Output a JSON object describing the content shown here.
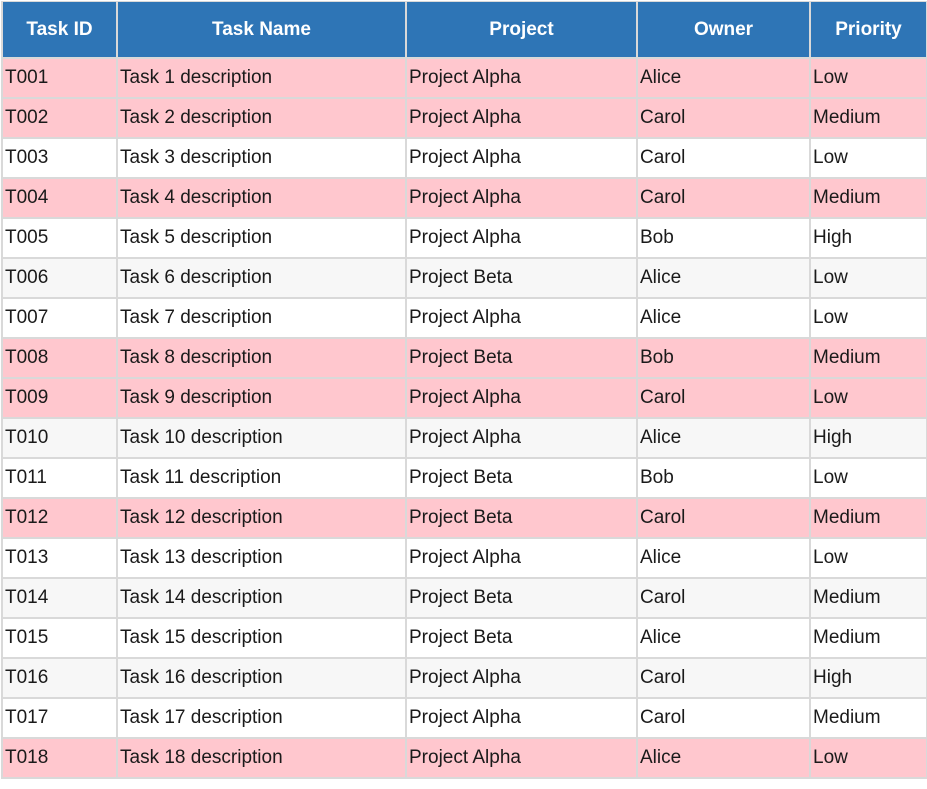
{
  "colors": {
    "header_bg": "#2e75b6",
    "header_text": "#ffffff",
    "highlight_row": "#ffc7ce",
    "plain_row": "#ffffff",
    "alt_row": "#f7f7f7",
    "grid": "#d9d9d9"
  },
  "table": {
    "headers": [
      "Task ID",
      "Task Name",
      "Project",
      "Owner",
      "Priority"
    ],
    "rows": [
      {
        "style": "highlight",
        "cells": [
          "T001",
          "Task 1 description",
          "Project Alpha",
          "Alice",
          "Low"
        ]
      },
      {
        "style": "highlight",
        "cells": [
          "T002",
          "Task 2 description",
          "Project Alpha",
          "Carol",
          "Medium"
        ]
      },
      {
        "style": "plain",
        "cells": [
          "T003",
          "Task 3 description",
          "Project Alpha",
          "Carol",
          "Low"
        ]
      },
      {
        "style": "highlight",
        "cells": [
          "T004",
          "Task 4 description",
          "Project Alpha",
          "Carol",
          "Medium"
        ]
      },
      {
        "style": "plain",
        "cells": [
          "T005",
          "Task 5 description",
          "Project Alpha",
          "Bob",
          "High"
        ]
      },
      {
        "style": "alt",
        "cells": [
          "T006",
          "Task 6 description",
          "Project Beta",
          "Alice",
          "Low"
        ]
      },
      {
        "style": "plain",
        "cells": [
          "T007",
          "Task 7 description",
          "Project Alpha",
          "Alice",
          "Low"
        ]
      },
      {
        "style": "highlight",
        "cells": [
          "T008",
          "Task 8 description",
          "Project Beta",
          "Bob",
          "Medium"
        ]
      },
      {
        "style": "highlight",
        "cells": [
          "T009",
          "Task 9 description",
          "Project Alpha",
          "Carol",
          "Low"
        ]
      },
      {
        "style": "alt",
        "cells": [
          "T010",
          "Task 10 description",
          "Project Alpha",
          "Alice",
          "High"
        ]
      },
      {
        "style": "plain",
        "cells": [
          "T011",
          "Task 11 description",
          "Project Beta",
          "Bob",
          "Low"
        ]
      },
      {
        "style": "highlight",
        "cells": [
          "T012",
          "Task 12 description",
          "Project Beta",
          "Carol",
          "Medium"
        ]
      },
      {
        "style": "plain",
        "cells": [
          "T013",
          "Task 13 description",
          "Project Alpha",
          "Alice",
          "Low"
        ]
      },
      {
        "style": "alt",
        "cells": [
          "T014",
          "Task 14 description",
          "Project Beta",
          "Carol",
          "Medium"
        ]
      },
      {
        "style": "plain",
        "cells": [
          "T015",
          "Task 15 description",
          "Project Beta",
          "Alice",
          "Medium"
        ]
      },
      {
        "style": "alt",
        "cells": [
          "T016",
          "Task 16 description",
          "Project Alpha",
          "Carol",
          "High"
        ]
      },
      {
        "style": "plain",
        "cells": [
          "T017",
          "Task 17 description",
          "Project Alpha",
          "Carol",
          "Medium"
        ]
      },
      {
        "style": "highlight",
        "cells": [
          "T018",
          "Task 18 description",
          "Project Alpha",
          "Alice",
          "Low"
        ]
      }
    ]
  }
}
